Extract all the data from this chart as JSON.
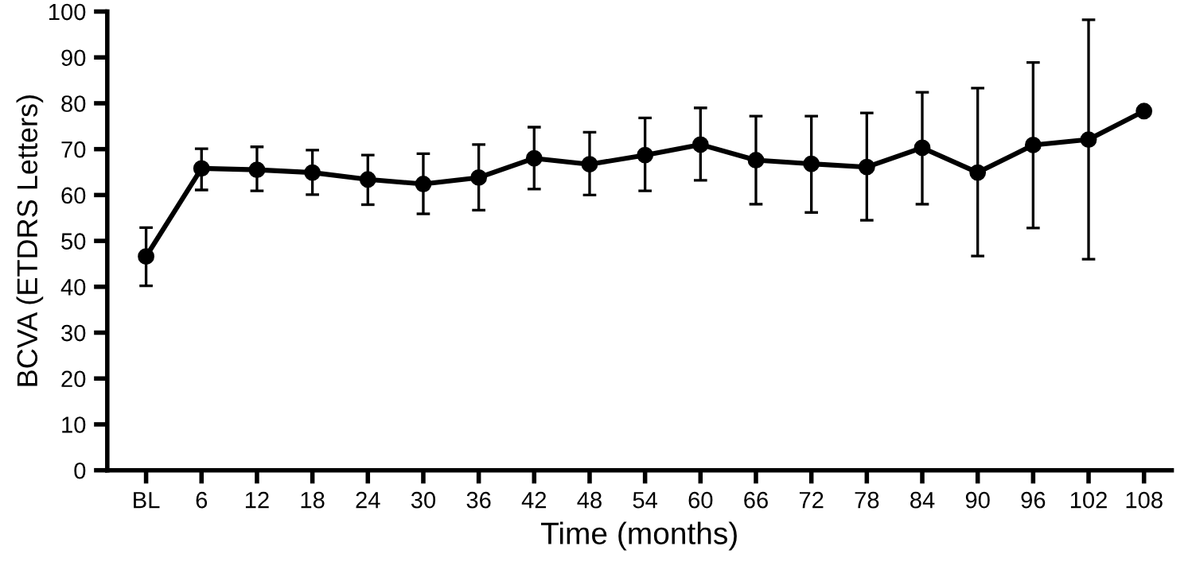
{
  "chart_data": {
    "type": "line",
    "xlabel": "Time (months)",
    "ylabel": "BCVA (ETDRS Letters)",
    "categories": [
      "BL",
      "6",
      "12",
      "18",
      "24",
      "30",
      "36",
      "42",
      "48",
      "54",
      "60",
      "66",
      "72",
      "78",
      "84",
      "90",
      "96",
      "102",
      "108"
    ],
    "series": [
      {
        "color": "#000000",
        "values": [
          46.6,
          65.8,
          65.5,
          64.9,
          63.4,
          62.4,
          63.8,
          68.0,
          66.7,
          68.7,
          71.0,
          67.6,
          66.8,
          66.1,
          70.3,
          64.9,
          70.9,
          72.1,
          78.3
        ],
        "errors": [
          [
            40.2,
            52.9
          ],
          [
            61.1,
            70.1
          ],
          [
            60.9,
            70.5
          ],
          [
            60.1,
            69.8
          ],
          [
            57.9,
            68.7
          ],
          [
            55.9,
            69.0
          ],
          [
            56.7,
            71.0
          ],
          [
            61.3,
            74.8
          ],
          [
            60.0,
            73.7
          ],
          [
            60.9,
            76.8
          ],
          [
            63.2,
            79.0
          ],
          [
            58.0,
            77.2
          ],
          [
            56.2,
            77.2
          ],
          [
            54.5,
            77.9
          ],
          [
            58.0,
            82.4
          ],
          [
            46.7,
            83.3
          ],
          [
            52.8,
            88.9
          ],
          [
            46.0,
            98.2
          ],
          null
        ]
      }
    ],
    "ylim": [
      0,
      100
    ],
    "yticks": [
      0,
      10,
      20,
      30,
      40,
      50,
      60,
      70,
      80,
      90,
      100
    ],
    "grid": false,
    "marker": "circle",
    "line_style": "solid"
  }
}
